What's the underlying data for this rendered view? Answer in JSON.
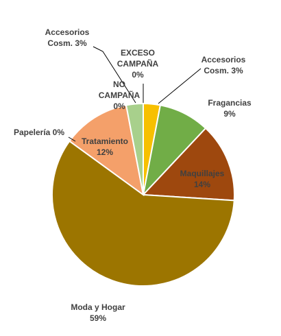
{
  "chart_data": {
    "type": "pie",
    "title": "",
    "slices": [
      {
        "label": "EXCESO CAMPAÑA",
        "value": 0,
        "pct": "0%",
        "color": "#f2c300",
        "label_color": "#333333"
      },
      {
        "label": "Accesorios Cosm.",
        "value": 3,
        "pct": "3%",
        "color": "#f7c000",
        "label_color": "#333333"
      },
      {
        "label": "Fragancias",
        "value": 9,
        "pct": "9%",
        "color": "#71ad47",
        "label_color": "#333333"
      },
      {
        "label": "Maquillajes",
        "value": 14,
        "pct": "14%",
        "color": "#9e480e",
        "label_color": "#333333"
      },
      {
        "label": "Moda y Hogar",
        "value": 59,
        "pct": "59%",
        "color": "#9c7500",
        "label_color": "#333333"
      },
      {
        "label": "Papelería",
        "value": 0,
        "pct": "0%",
        "color": "#f0e0c0",
        "label_color": "#333333"
      },
      {
        "label": "Tratamiento",
        "value": 12,
        "pct": "12%",
        "color": "#f4a06a",
        "label_color": "#333333"
      },
      {
        "label": "NO CAMPAÑA",
        "value": 0,
        "pct": "0%",
        "color": "#c9d9a7",
        "label_color": "#333333"
      },
      {
        "label": "Accesorios Cosm.",
        "value": 3,
        "pct": "3%",
        "color": "#a8d08c",
        "label_color": "#333333"
      }
    ]
  },
  "labels": [
    {
      "lines": [
        "Accesorios",
        "Cosm. 3%"
      ]
    },
    {
      "lines": [
        "EXCESO",
        "CAMPAÑA",
        "0%"
      ]
    },
    {
      "lines": [
        "Accesorios",
        "Cosm. 3%"
      ]
    },
    {
      "lines": [
        "NO",
        "CAMPAÑA",
        "0%"
      ]
    },
    {
      "lines": [
        "Fragancias",
        "9%"
      ]
    },
    {
      "lines": [
        "Papelería 0%"
      ]
    },
    {
      "lines": [
        "Tratamiento",
        "12%"
      ]
    },
    {
      "lines": [
        "Maquillajes",
        "14%"
      ]
    },
    {
      "lines": [
        "Moda y Hogar",
        "59%"
      ]
    }
  ]
}
